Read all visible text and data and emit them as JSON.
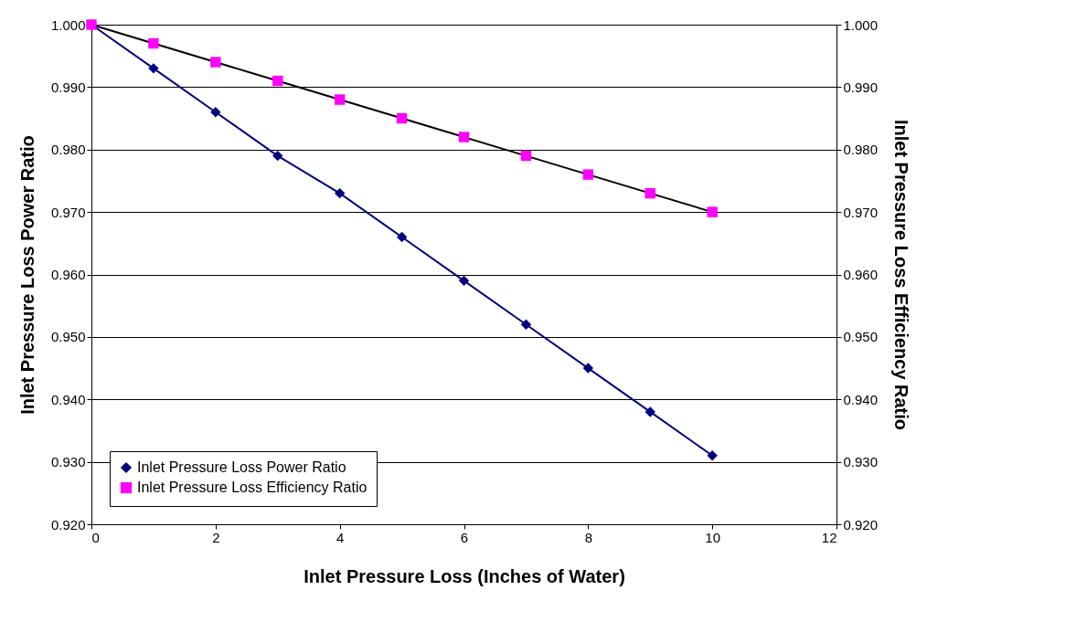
{
  "chart_data": {
    "type": "line",
    "xlabel": "Inlet Pressure Loss (Inches of Water)",
    "ylabel": "Inlet Pressure Loss Power Ratio",
    "y2label": "Inlet Pressure Loss Efficiency Ratio",
    "x": [
      0,
      1,
      2,
      3,
      4,
      5,
      6,
      7,
      8,
      9,
      10
    ],
    "series": [
      {
        "name": "Inlet Pressure Loss Power Ratio",
        "color": "#000080",
        "marker": "diamond",
        "values": [
          1.0,
          0.993,
          0.986,
          0.979,
          0.973,
          0.966,
          0.959,
          0.952,
          0.945,
          0.938,
          0.931
        ]
      },
      {
        "name": "Inlet Pressure Loss Efficiency Ratio",
        "color": "#000000",
        "colors": [
          "#ff00ff",
          "#ff00ff",
          "#ff00ff",
          "#ff00ff",
          "#ff00ff",
          "#ff00ff",
          "#ff00ff",
          "#ff00ff",
          "#ff00ff",
          "#ff00ff",
          "#ff00ff"
        ],
        "marker": "square",
        "axis": "y2",
        "values": [
          1.0,
          0.997,
          0.994,
          0.991,
          0.988,
          0.985,
          0.982,
          0.979,
          0.976,
          0.973,
          0.97
        ]
      }
    ],
    "xlim": [
      0,
      12
    ],
    "xticks": [
      0,
      2,
      4,
      6,
      8,
      10,
      12
    ],
    "ylim": [
      0.92,
      1.0
    ],
    "yticks": [
      {
        "value": 0.92,
        "label": "0.920"
      },
      {
        "value": 0.93,
        "label": "0.930"
      },
      {
        "value": 0.94,
        "label": "0.940"
      },
      {
        "value": 0.95,
        "label": "0.950"
      },
      {
        "value": 0.96,
        "label": "0.960"
      },
      {
        "value": 0.97,
        "label": "0.970"
      },
      {
        "value": 0.98,
        "label": "0.980"
      },
      {
        "value": 0.99,
        "label": "0.990"
      },
      {
        "value": 1.0,
        "label": "1.000"
      }
    ],
    "y2lim": [
      0.92,
      1.0
    ],
    "y2ticks": [
      {
        "value": 0.92,
        "label": "0.920"
      },
      {
        "value": 0.93,
        "label": "0.930"
      },
      {
        "value": 0.94,
        "label": "0.940"
      },
      {
        "value": 0.95,
        "label": "0.950"
      },
      {
        "value": 0.96,
        "label": "0.960"
      },
      {
        "value": 0.97,
        "label": "0.970"
      },
      {
        "value": 0.98,
        "label": "0.980"
      },
      {
        "value": 0.99,
        "label": "0.990"
      },
      {
        "value": 1.0,
        "label": "1.000"
      }
    ],
    "grid": "y",
    "legend": "bottom left"
  }
}
